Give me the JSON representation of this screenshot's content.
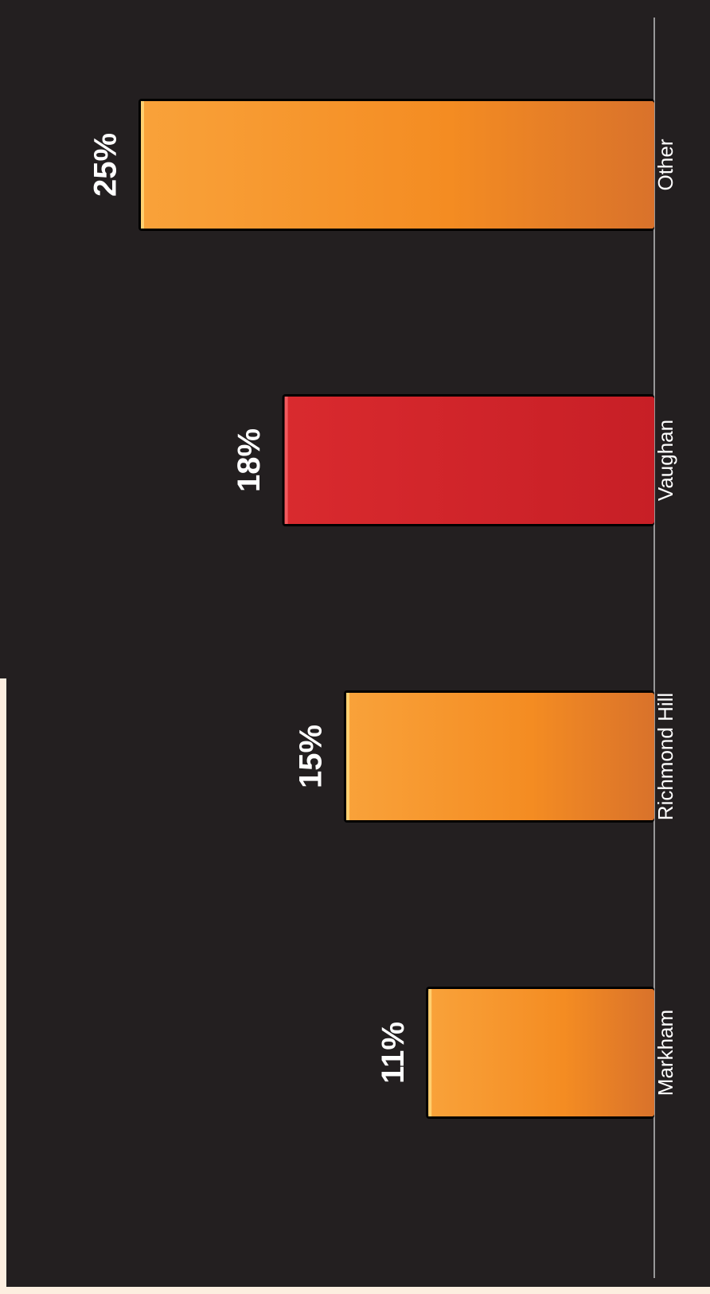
{
  "chart_data": {
    "type": "bar",
    "orientation": "vertical (rotated 90°)",
    "categories": [
      "Markham",
      "Richmond Hill",
      "Vaughan",
      "Other"
    ],
    "values": [
      11,
      15,
      18,
      25
    ],
    "value_labels": [
      "11%",
      "15%",
      "18%",
      "25%"
    ],
    "highlight_category": "Vaughan",
    "colors": {
      "default": "#f7931e",
      "highlight": "#cc2027",
      "background": "#231f20",
      "text": "#ffffff"
    },
    "title": "",
    "xlabel": "",
    "ylabel": "",
    "ylim": [
      0,
      25
    ],
    "grid": false,
    "legend": "none"
  }
}
